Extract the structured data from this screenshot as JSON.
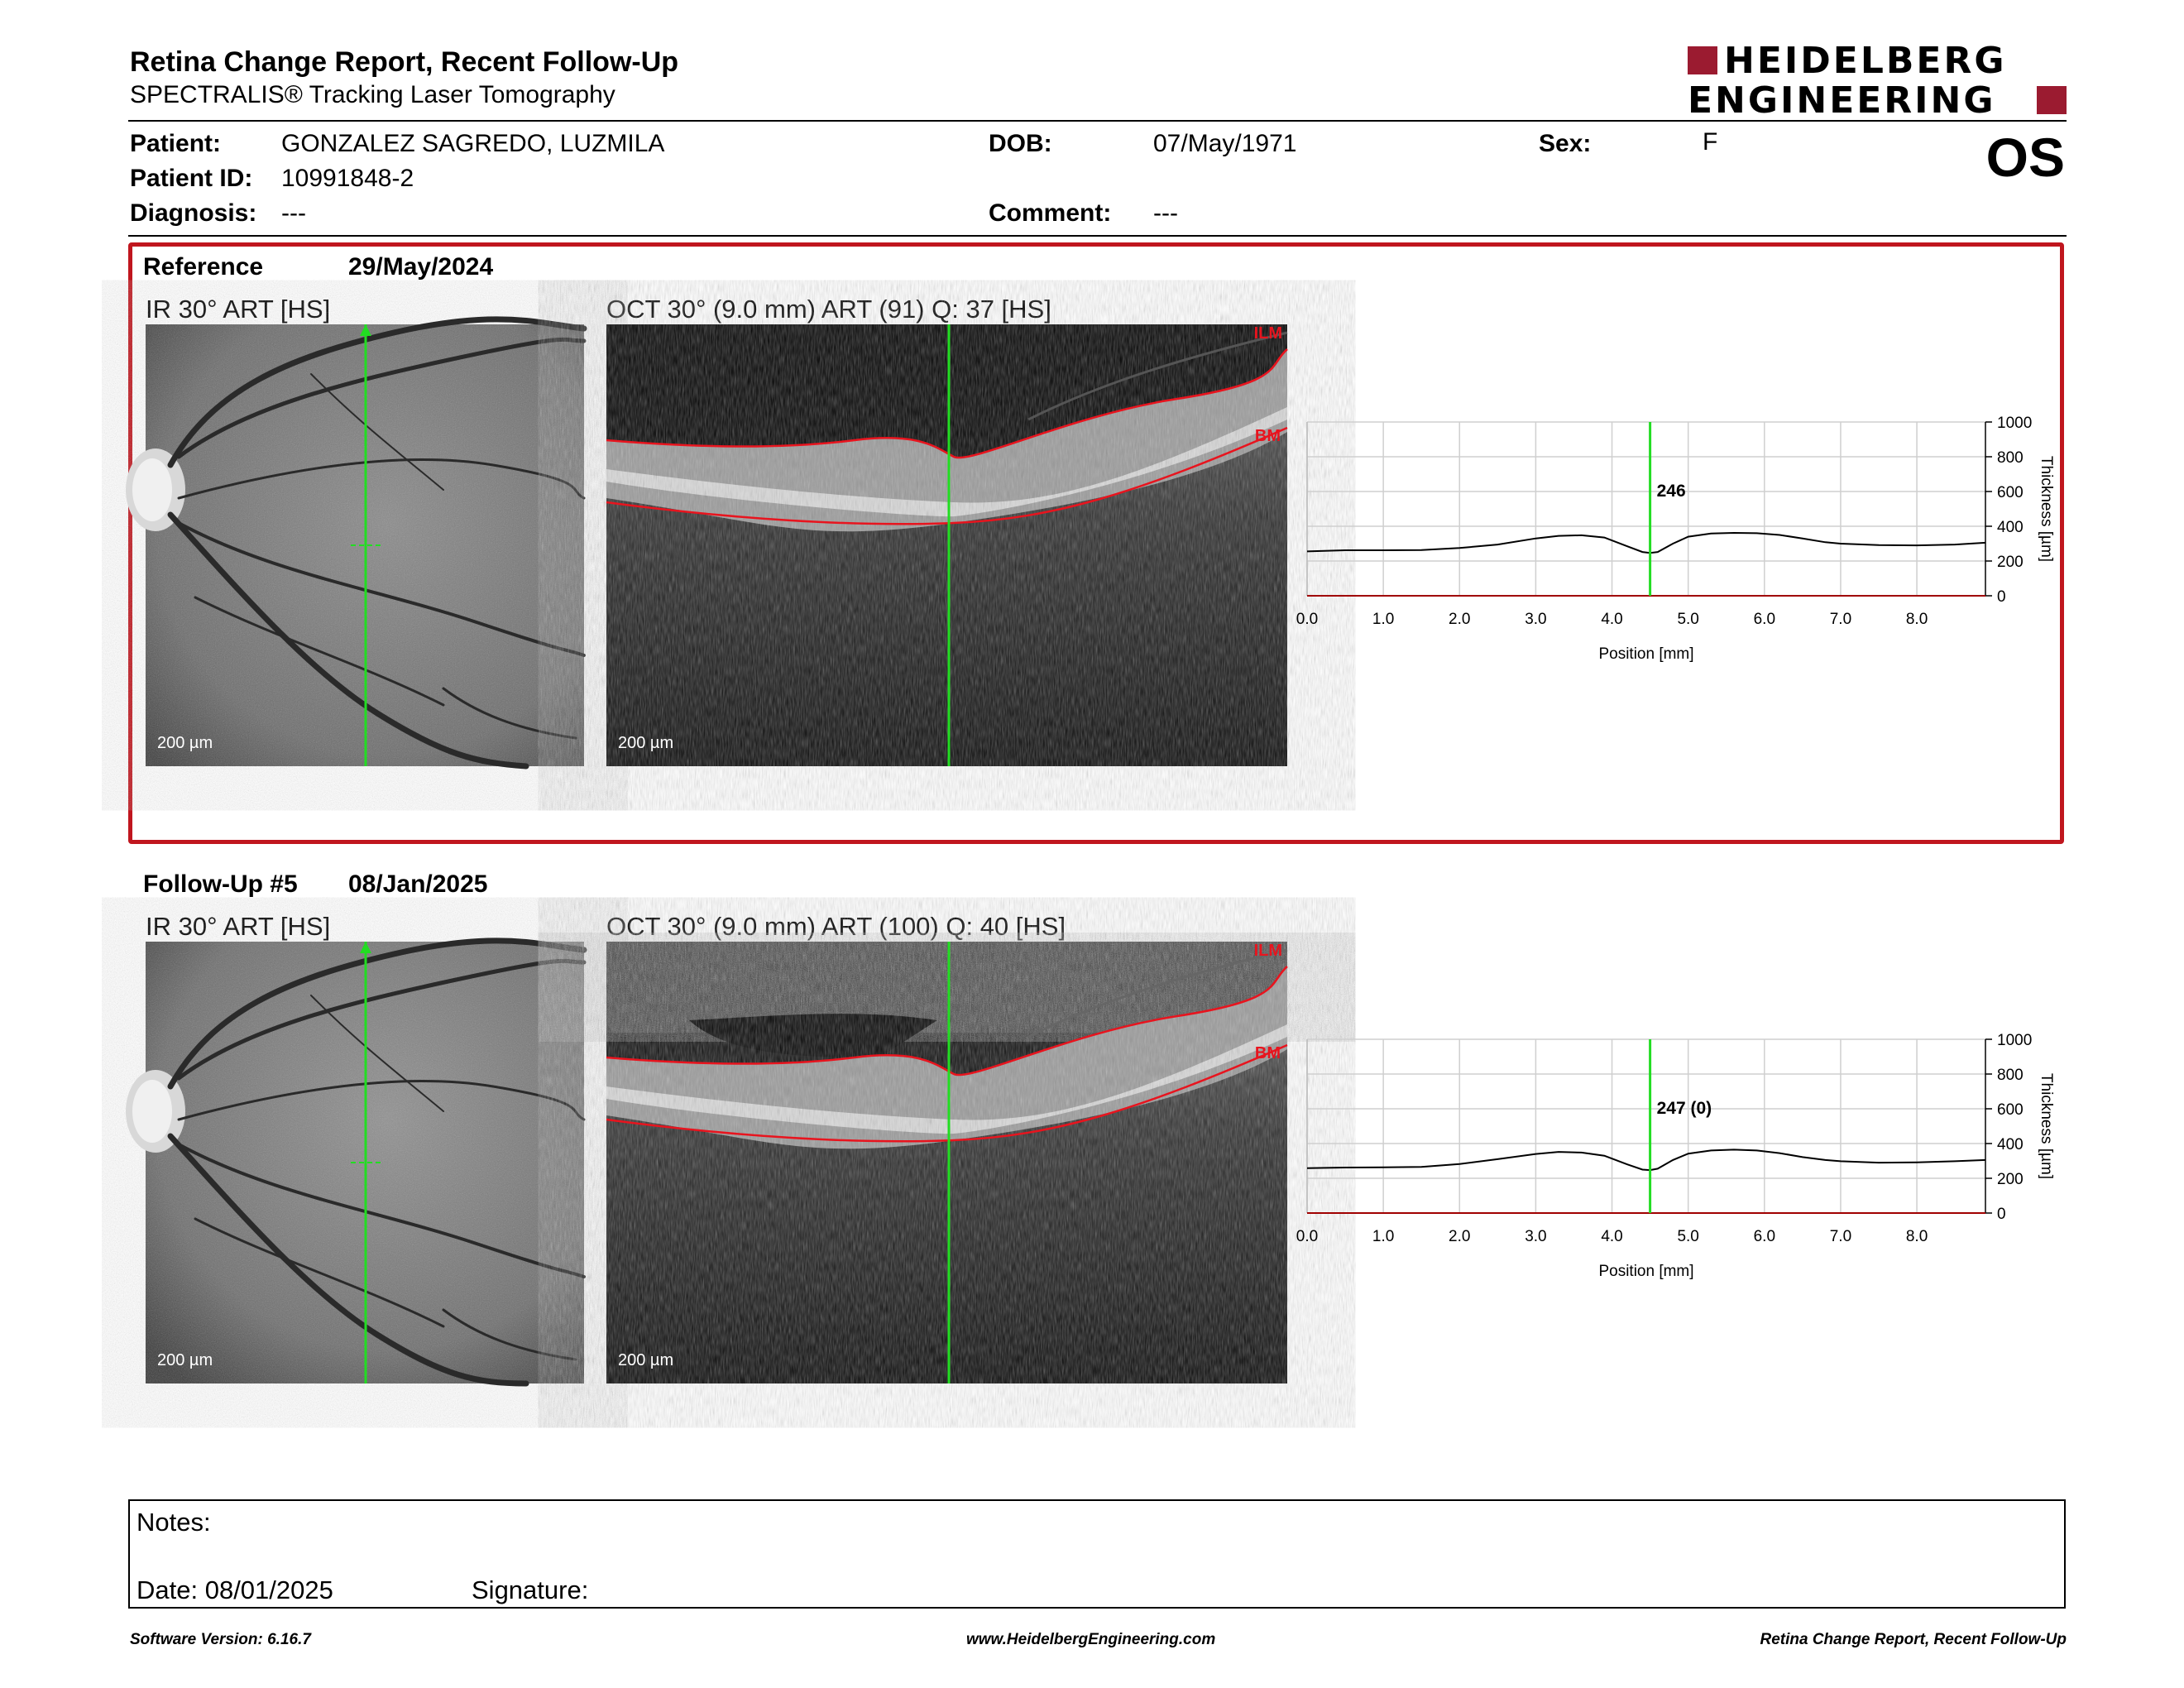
{
  "header": {
    "title": "Retina Change Report, Recent Follow-Up",
    "subtitle": "SPECTRALIS® Tracking Laser Tomography",
    "logo_line1": "HEIDELBERG",
    "logo_line2": "ENGINEERING",
    "eye": "OS",
    "brand_color": "#9b1b30"
  },
  "patient": {
    "patient_label": "Patient:",
    "patient_name": "GONZALEZ SAGREDO, LUZMILA",
    "id_label": "Patient ID:",
    "id_value": "10991848-2",
    "diagnosis_label": "Diagnosis:",
    "diagnosis_value": "---",
    "dob_label": "DOB:",
    "dob_value": "07/May/1971",
    "comment_label": "Comment:",
    "comment_value": "---",
    "sex_label": "Sex:",
    "sex_value": "F"
  },
  "reference": {
    "label": "Reference",
    "date": "29/May/2024",
    "ir_label": "IR 30° ART [HS]",
    "oct_label": "OCT 30° (9.0 mm) ART (91) Q: 37 [HS]",
    "scale": "200 µm",
    "ilm": "ILM",
    "bm": "BM",
    "box_color": "#c0161e"
  },
  "followup": {
    "label": "Follow-Up #5",
    "date": "08/Jan/2025",
    "ir_label": "IR 30° ART [HS]",
    "oct_label": "OCT 30° (9.0 mm) ART (100) Q: 40 [HS]",
    "scale": "200 µm",
    "ilm": "ILM",
    "bm": "BM"
  },
  "chart_data": [
    {
      "type": "line",
      "xlabel": "Position [mm]",
      "ylabel": "Thickness [µm]",
      "xlim": [
        0,
        8.9
      ],
      "ylim": [
        0,
        1000
      ],
      "x_ticks": [
        "0.0",
        "1.0",
        "2.0",
        "3.0",
        "4.0",
        "5.0",
        "6.0",
        "7.0",
        "8.0"
      ],
      "y_ticks": [
        "0",
        "200",
        "400",
        "600",
        "800",
        "1000"
      ],
      "marker_x": 4.5,
      "marker_label": "246",
      "grid": true,
      "x": [
        0,
        0.5,
        1.0,
        1.5,
        2.0,
        2.5,
        3.0,
        3.3,
        3.6,
        3.9,
        4.2,
        4.4,
        4.5,
        4.6,
        4.8,
        5.0,
        5.3,
        5.6,
        5.9,
        6.2,
        6.5,
        6.8,
        7.0,
        7.5,
        8.0,
        8.5,
        8.9
      ],
      "y": [
        255,
        262,
        262,
        263,
        275,
        295,
        330,
        345,
        348,
        335,
        285,
        252,
        246,
        252,
        300,
        340,
        358,
        362,
        360,
        350,
        330,
        308,
        300,
        292,
        290,
        295,
        305
      ]
    },
    {
      "type": "line",
      "xlabel": "Position [mm]",
      "ylabel": "Thickness [µm]",
      "xlim": [
        0,
        8.9
      ],
      "ylim": [
        0,
        1000
      ],
      "x_ticks": [
        "0.0",
        "1.0",
        "2.0",
        "3.0",
        "4.0",
        "5.0",
        "6.0",
        "7.0",
        "8.0"
      ],
      "y_ticks": [
        "0",
        "200",
        "400",
        "600",
        "800",
        "1000"
      ],
      "marker_x": 4.5,
      "marker_label": "247 (0)",
      "grid": true,
      "x": [
        0,
        0.5,
        1.0,
        1.5,
        2.0,
        2.5,
        3.0,
        3.3,
        3.6,
        3.9,
        4.2,
        4.4,
        4.5,
        4.6,
        4.8,
        5.0,
        5.3,
        5.6,
        5.9,
        6.2,
        6.5,
        6.8,
        7.0,
        7.5,
        8.0,
        8.5,
        8.9
      ],
      "y": [
        258,
        262,
        263,
        265,
        282,
        310,
        340,
        352,
        348,
        330,
        280,
        250,
        247,
        255,
        305,
        342,
        360,
        365,
        360,
        345,
        322,
        305,
        298,
        290,
        292,
        298,
        305
      ]
    }
  ],
  "notes": {
    "label": "Notes:",
    "date_label": "Date: 08/01/2025",
    "signature_label": "Signature:"
  },
  "footer": {
    "left": "Software Version: 6.16.7",
    "center": "www.HeidelbergEngineering.com",
    "right": "Retina Change Report, Recent Follow-Up"
  }
}
